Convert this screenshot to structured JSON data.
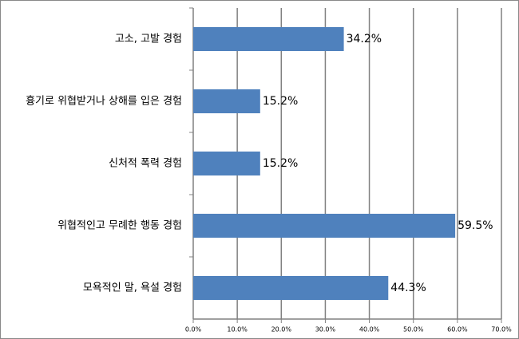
{
  "chart_data": {
    "type": "bar",
    "orientation": "horizontal",
    "categories": [
      "고소, 고발 경험",
      "흉기로 위협받거나 상해를 입은 경험",
      "신처적 폭력 경험",
      "위협적인고 무례한 행동 경험",
      "모욕적인 말, 욕설 경험"
    ],
    "values": [
      34.2,
      15.2,
      15.2,
      59.5,
      44.3
    ],
    "value_labels": [
      "34.2%",
      "15.2%",
      "15.2%",
      "59.5%",
      "44.3%"
    ],
    "color": "#4f81bd",
    "xlim": [
      0,
      70
    ],
    "xticks": [
      {
        "value": 0,
        "label": "0.0%"
      },
      {
        "value": 10,
        "label": "10.0%"
      },
      {
        "value": 20,
        "label": "20.0%"
      },
      {
        "value": 30,
        "label": "30.0%"
      },
      {
        "value": 40,
        "label": "40.0%"
      },
      {
        "value": 50,
        "label": "50.0%"
      },
      {
        "value": 60,
        "label": "60.0%"
      },
      {
        "value": 70,
        "label": "70.0%"
      }
    ],
    "grid": true
  }
}
